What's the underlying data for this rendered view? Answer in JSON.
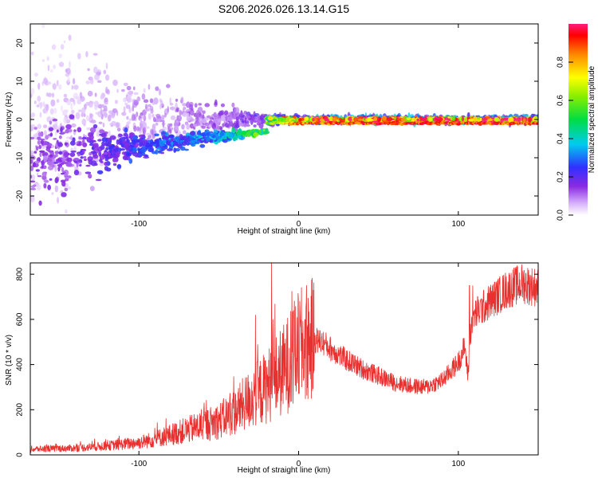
{
  "title": "S206.2026.026.13.14.G15",
  "chart_data": [
    {
      "type": "heatmap",
      "xlabel": "Height of straight line (km)",
      "ylabel": "Frequency (Hz)",
      "xlim": [
        -168,
        150
      ],
      "ylim": [
        -25,
        25
      ],
      "xticks": [
        -100,
        0,
        100
      ],
      "yticks": [
        -20,
        -10,
        0,
        10,
        20
      ],
      "colorbar": {
        "label": "Normalized spectral amplitude",
        "range": [
          0,
          1
        ],
        "ticks": [
          "0.0",
          "0.2",
          "0.4",
          "0.6",
          "0.8"
        ]
      },
      "description_points": [
        {
          "x": -150,
          "freq_spread": 25,
          "amp": 0.15
        },
        {
          "x": -100,
          "freq_spread": 8,
          "amp": 0.25
        },
        {
          "x": -50,
          "freq_spread": 4,
          "amp": 0.35
        },
        {
          "x": -20,
          "freq_spread": 1.5,
          "amp": 0.6
        },
        {
          "x": 0,
          "freq_spread": 1,
          "amp": 0.9
        },
        {
          "x": 50,
          "freq_spread": 1,
          "amp": 0.95
        },
        {
          "x": 100,
          "freq_spread": 1,
          "amp": 0.95
        },
        {
          "x": 150,
          "freq_spread": 1,
          "amp": 0.95
        }
      ]
    },
    {
      "type": "line",
      "xlabel": "Height of straight line (km)",
      "ylabel": "SNR (10 * v/v)",
      "xlim": [
        -168,
        150
      ],
      "ylim": [
        0,
        850
      ],
      "xticks": [
        -100,
        0,
        100
      ],
      "yticks": [
        0,
        200,
        400,
        600,
        800
      ],
      "color": "#e8312f",
      "envelope": {
        "x": [
          -168,
          -140,
          -120,
          -100,
          -90,
          -80,
          -70,
          -60,
          -50,
          -40,
          -30,
          -20,
          -15,
          -10,
          -5,
          0,
          5,
          10,
          15,
          20,
          30,
          40,
          50,
          60,
          70,
          80,
          90,
          100,
          104,
          106,
          108,
          110,
          120,
          130,
          140,
          150
        ],
        "y": [
          25,
          30,
          40,
          55,
          70,
          90,
          110,
          130,
          150,
          190,
          250,
          300,
          340,
          370,
          420,
          470,
          500,
          510,
          500,
          470,
          420,
          380,
          350,
          320,
          305,
          300,
          330,
          410,
          480,
          350,
          580,
          620,
          680,
          730,
          760,
          740
        ]
      },
      "spikes": [
        {
          "x": -17,
          "y": 850
        },
        {
          "x": -27,
          "y": 620
        },
        {
          "x": -3,
          "y": 640
        },
        {
          "x": 107,
          "y": 750
        },
        {
          "x": 109,
          "y": 750
        }
      ]
    }
  ]
}
